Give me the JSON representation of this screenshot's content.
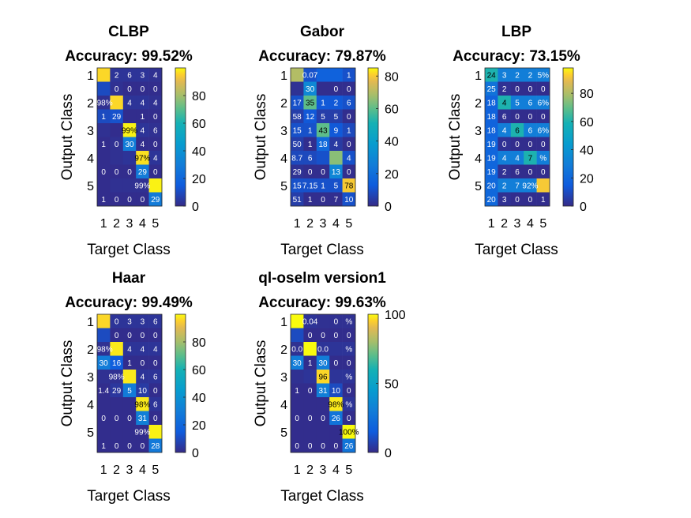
{
  "panels": [
    {
      "title": "CLBP",
      "accuracy": "Accuracy: 99.52%",
      "xlabel": "Target Class",
      "ylabel": "Output Class",
      "row_labels": [
        "1",
        "",
        "2",
        "",
        "3",
        "",
        "4",
        "",
        "5",
        ""
      ],
      "col_labels": [
        "1",
        "2",
        "3",
        "4",
        "5"
      ],
      "colorbar": {
        "min": 0,
        "max": 100,
        "ticks": [
          "0",
          "20",
          "40",
          "60",
          "80"
        ]
      }
    },
    {
      "title": "Gabor",
      "accuracy": "Accuracy: 79.87%",
      "xlabel": "Target Class",
      "ylabel": "Output Class",
      "row_labels": [
        "1",
        "",
        "2",
        "",
        "3",
        "",
        "4",
        "",
        "5",
        ""
      ],
      "col_labels": [
        "1",
        "2",
        "3",
        "4",
        "5"
      ],
      "colorbar": {
        "min": 0,
        "max": 85,
        "ticks": [
          "0",
          "20",
          "40",
          "60",
          "80"
        ]
      }
    },
    {
      "title": "LBP",
      "accuracy": "Accuracy: 73.15%",
      "xlabel": "Target Class",
      "ylabel": "Output Class",
      "row_labels": [
        "1",
        "",
        "2",
        "",
        "3",
        "",
        "4",
        "",
        "5",
        ""
      ],
      "col_labels": [
        "1",
        "2",
        "3",
        "4",
        "5"
      ],
      "colorbar": {
        "min": 0,
        "max": 98,
        "ticks": [
          "0",
          "20",
          "40",
          "60",
          "80"
        ]
      }
    },
    {
      "title": "Haar",
      "accuracy": "Accuracy: 99.49%",
      "xlabel": "Target Class",
      "ylabel": "Output Class",
      "row_labels": [
        "1",
        "",
        "2",
        "",
        "3",
        "",
        "4",
        "",
        "5",
        ""
      ],
      "col_labels": [
        "1",
        "2",
        "3",
        "4",
        "5"
      ],
      "colorbar": {
        "min": 0,
        "max": 100,
        "ticks": [
          "0",
          "20",
          "40",
          "60",
          "80"
        ]
      }
    },
    {
      "title": "ql-oselm version1",
      "accuracy": "Accuracy: 99.63%",
      "xlabel": "Target Class",
      "ylabel": "Output Class",
      "row_labels": [
        "1",
        "",
        "2",
        "",
        "3",
        "",
        "4",
        "",
        "5",
        ""
      ],
      "col_labels": [
        "1",
        "2",
        "3",
        "4",
        "5"
      ],
      "colorbar": {
        "min": 0,
        "max": 100,
        "ticks": [
          "0",
          "50",
          "100"
        ]
      }
    }
  ],
  "chart_data": [
    {
      "type": "heatmap",
      "title": "CLBP",
      "subtitle": "Accuracy: 99.52%",
      "xlabel": "Target Class",
      "ylabel": "Output Class",
      "categories": [
        "1",
        "2",
        "3",
        "4",
        "5"
      ],
      "colorbar_range": [
        0,
        100
      ],
      "cells": [
        [
          96,
          3,
          3,
          3,
          2
        ],
        [
          10,
          2,
          1,
          1,
          1
        ],
        [
          2,
          96,
          3,
          3,
          2
        ],
        [
          10,
          12,
          1,
          1,
          1
        ],
        [
          2,
          1,
          99,
          3,
          2
        ],
        [
          1,
          2,
          30,
          1,
          1
        ],
        [
          1,
          2,
          3,
          97,
          3
        ],
        [
          1,
          1,
          1,
          29,
          1
        ],
        [
          1,
          2,
          2,
          2,
          99
        ],
        [
          1,
          1,
          1,
          1,
          29
        ]
      ],
      "cell_labels": [
        [
          "",
          "2",
          "6",
          "3",
          "4"
        ],
        [
          "",
          "0",
          "0",
          "0",
          "0"
        ],
        [
          ".98%",
          "",
          "4",
          "4",
          "4"
        ],
        [
          "1",
          "29",
          "",
          "1",
          "0"
        ],
        [
          "",
          "",
          "99%",
          "4",
          "6"
        ],
        [
          "1",
          "0",
          "30",
          "4",
          "0"
        ],
        [
          "",
          "",
          "",
          "97%",
          "4"
        ],
        [
          "0",
          "0",
          "0",
          "29",
          "0"
        ],
        [
          "",
          "",
          "",
          "99%",
          ""
        ],
        [
          "1",
          "0",
          "0",
          "0",
          "29"
        ]
      ]
    },
    {
      "type": "heatmap",
      "title": "Gabor",
      "subtitle": "Accuracy: 79.87%",
      "xlabel": "Target Class",
      "ylabel": "Output Class",
      "categories": [
        "1",
        "2",
        "3",
        "4",
        "5"
      ],
      "colorbar_range": [
        0,
        85
      ],
      "cells": [
        [
          70,
          10,
          15,
          15,
          10
        ],
        [
          2,
          30,
          1,
          1,
          1
        ],
        [
          10,
          60,
          12,
          12,
          10
        ],
        [
          5,
          12,
          5,
          5,
          1
        ],
        [
          10,
          10,
          60,
          12,
          8
        ],
        [
          5,
          1,
          18,
          4,
          1
        ],
        [
          8,
          8,
          10,
          65,
          10
        ],
        [
          2,
          1,
          1,
          29,
          1
        ],
        [
          10,
          10,
          10,
          10,
          80
        ],
        [
          5,
          1,
          1,
          1,
          10
        ]
      ],
      "cell_labels": [
        [
          "",
          "0.07",
          "",
          "",
          "1"
        ],
        [
          "",
          "30",
          "",
          "0",
          "0"
        ],
        [
          "17",
          "35",
          "1",
          "2",
          "6"
        ],
        [
          "58",
          "12",
          "5",
          "5",
          "0"
        ],
        [
          "15",
          "1",
          "43",
          "9",
          "1"
        ],
        [
          "50",
          "1",
          "18",
          "4",
          "0"
        ],
        [
          "8.7",
          "6",
          "",
          "",
          "4"
        ],
        [
          "29",
          "0",
          "0",
          "13",
          "0"
        ],
        [
          "15",
          "7.15",
          "1",
          "5",
          "78"
        ],
        [
          "51",
          "1",
          "0",
          "7",
          "10"
        ]
      ]
    },
    {
      "type": "heatmap",
      "title": "LBP",
      "subtitle": "Accuracy: 73.15%",
      "xlabel": "Target Class",
      "ylabel": "Output Class",
      "categories": [
        "1",
        "2",
        "3",
        "4",
        "5"
      ],
      "colorbar_range": [
        0,
        98
      ],
      "cells": [
        [
          60,
          30,
          30,
          30,
          30
        ],
        [
          25,
          2,
          1,
          1,
          1
        ],
        [
          18,
          60,
          30,
          30,
          30
        ],
        [
          18,
          2,
          1,
          1,
          1
        ],
        [
          18,
          30,
          60,
          30,
          30
        ],
        [
          19,
          2,
          1,
          1,
          1
        ],
        [
          19,
          30,
          30,
          60,
          30
        ],
        [
          19,
          2,
          1,
          1,
          1
        ],
        [
          20,
          30,
          30,
          30,
          92
        ],
        [
          20,
          2,
          1,
          1,
          1
        ]
      ],
      "cell_labels": [
        [
          "24",
          "3",
          "2",
          "2",
          "5%"
        ],
        [
          "25",
          "2",
          "0",
          "0",
          "0"
        ],
        [
          "18",
          "4",
          "5",
          "6",
          "6%"
        ],
        [
          "18",
          "6",
          "0",
          "0",
          "0"
        ],
        [
          "18",
          "4",
          "6",
          "6",
          "6%"
        ],
        [
          "19",
          "0",
          "0",
          "0",
          "0"
        ],
        [
          "19",
          "4",
          "4",
          "7",
          "%"
        ],
        [
          "19",
          "2",
          "6",
          "0",
          "0"
        ],
        [
          "20",
          "2",
          "7",
          "92%",
          ""
        ],
        [
          "20",
          "3",
          "0",
          "0",
          "1"
        ]
      ]
    },
    {
      "type": "heatmap",
      "title": "Haar",
      "subtitle": "Accuracy: 99.49%",
      "xlabel": "Target Class",
      "ylabel": "Output Class",
      "categories": [
        "1",
        "2",
        "3",
        "4",
        "5"
      ],
      "colorbar_range": [
        0,
        100
      ],
      "cells": [
        [
          96,
          3,
          3,
          3,
          3
        ],
        [
          10,
          1,
          1,
          1,
          1
        ],
        [
          2,
          98,
          3,
          3,
          3
        ],
        [
          30,
          16,
          1,
          1,
          1
        ],
        [
          2,
          2,
          98,
          3,
          3
        ],
        [
          1,
          4,
          29,
          5,
          1
        ],
        [
          1,
          1,
          1,
          98,
          3
        ],
        [
          1,
          1,
          1,
          31,
          1
        ],
        [
          1,
          1,
          1,
          1,
          99
        ],
        [
          1,
          1,
          1,
          1,
          28
        ]
      ],
      "cell_labels": [
        [
          "",
          "0",
          "3",
          "3",
          "6"
        ],
        [
          "",
          "0",
          "0",
          "0",
          "0"
        ],
        [
          ".98%",
          "",
          "4",
          "4",
          "4"
        ],
        [
          "30",
          "16",
          "1",
          "0",
          "0"
        ],
        [
          "",
          "98%",
          "",
          "4",
          "6"
        ],
        [
          "1.4",
          "29",
          "5",
          "10",
          "0"
        ],
        [
          "",
          "",
          "",
          "98%",
          "6"
        ],
        [
          "0",
          "0",
          "0",
          "31",
          "0"
        ],
        [
          "",
          "",
          "",
          "99%",
          ""
        ],
        [
          "1",
          "0",
          "0",
          "0",
          "28"
        ]
      ]
    },
    {
      "type": "heatmap",
      "title": "ql-oselm version1",
      "subtitle": "Accuracy: 99.63%",
      "xlabel": "Target Class",
      "ylabel": "Output Class",
      "categories": [
        "1",
        "2",
        "3",
        "4",
        "5"
      ],
      "colorbar_range": [
        0,
        100
      ],
      "cells": [
        [
          100,
          3,
          2,
          2,
          2
        ],
        [
          10,
          1,
          1,
          1,
          1
        ],
        [
          2,
          100,
          3,
          3,
          3
        ],
        [
          30,
          1,
          30,
          1,
          1
        ],
        [
          2,
          3,
          96,
          3,
          3
        ],
        [
          1,
          1,
          31,
          10,
          1
        ],
        [
          1,
          1,
          1,
          98,
          3
        ],
        [
          1,
          1,
          1,
          26,
          1
        ],
        [
          1,
          1,
          1,
          1,
          100
        ],
        [
          1,
          1,
          1,
          1,
          26
        ]
      ],
      "cell_labels": [
        [
          "",
          "0.04",
          "",
          "0",
          "%"
        ],
        [
          "",
          "0",
          "0",
          "0",
          "0"
        ],
        [
          "0.0",
          "",
          "0.0",
          "",
          "%"
        ],
        [
          "30",
          "1",
          "30",
          "0",
          "0"
        ],
        [
          "",
          "",
          "96",
          "",
          "%"
        ],
        [
          "1",
          "0",
          "31",
          "10",
          "0"
        ],
        [
          "",
          "",
          "",
          "98%",
          "%"
        ],
        [
          "0",
          "0",
          "0",
          "26",
          "0"
        ],
        [
          "",
          "",
          "",
          "",
          "100%"
        ],
        [
          "0",
          "0",
          "0",
          "0",
          "26"
        ]
      ]
    }
  ]
}
